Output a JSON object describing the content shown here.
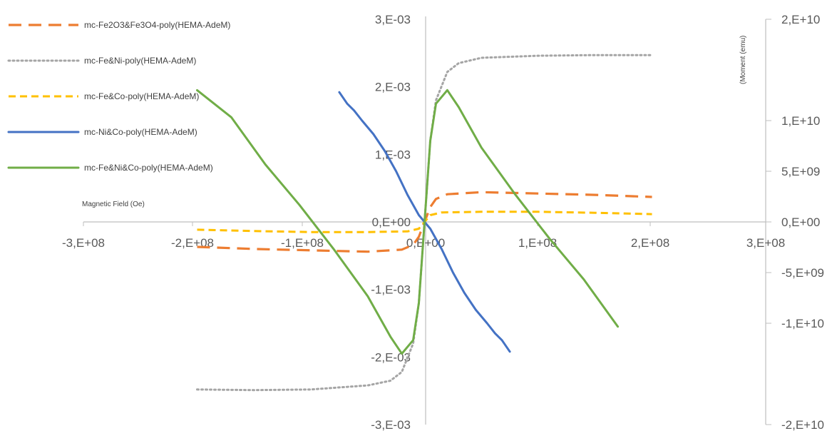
{
  "chart_data": {
    "type": "line",
    "xlabel": "Magnetic Field (Oe)",
    "ylabel_secondary": "(Moment (emu)",
    "xlim": [
      -300000000,
      300000000
    ],
    "ylim": [
      -0.003,
      0.003
    ],
    "ylim_secondary": [
      -20000000000,
      20000000000
    ],
    "x_ticks": [
      "-3,E+08",
      "-2,E+08",
      "-1,E+08",
      "0,E+00",
      "1,E+08",
      "2,E+08",
      "3,E+08"
    ],
    "y_ticks": [
      "-3,E-03",
      "-2,E-03",
      "-1,E-03",
      "0,E+00",
      "1,E-03",
      "2,E-03",
      "3,E-03"
    ],
    "y2_ticks": [
      "-2,E+10",
      "-1,E+10",
      "-5,E+09",
      "0,E+00",
      "5,E+09",
      "1,E+10",
      "2,E+10"
    ],
    "legend_position": "left",
    "series": [
      {
        "name": "mc-Fe2O3&Fe3O4-poly(HEMA-AdeM)",
        "color": "#ED7D31",
        "style": "longdash",
        "x": [
          -200000000,
          -150000000,
          -100000000,
          -50000000,
          -20000000,
          -10000000,
          -5000000,
          0,
          5000000,
          10000000,
          20000000,
          50000000,
          100000000,
          150000000,
          200000000
        ],
        "y": [
          -0.00037,
          -0.0004,
          -0.00042,
          -0.00044,
          -0.00041,
          -0.00034,
          -0.00022,
          0.0,
          0.00022,
          0.00034,
          0.00041,
          0.00044,
          0.00042,
          0.0004,
          0.00037
        ]
      },
      {
        "name": "mc-Fe&Ni-poly(HEMA-AdeM)",
        "color": "#A5A5A5",
        "style": "dotted",
        "x": [
          -200000000,
          -150000000,
          -100000000,
          -50000000,
          -30000000,
          -20000000,
          -10000000,
          -5000000,
          0,
          5000000,
          10000000,
          20000000,
          30000000,
          50000000,
          100000000,
          150000000,
          200000000
        ],
        "y": [
          -0.00248,
          -0.00249,
          -0.00248,
          -0.00242,
          -0.00235,
          -0.00222,
          -0.0018,
          -0.0012,
          0.0,
          0.0012,
          0.0018,
          0.00222,
          0.00235,
          0.00243,
          0.00246,
          0.00247,
          0.00247
        ]
      },
      {
        "name": "mc-Fe&Co-poly(HEMA-AdeM)",
        "color": "#FFC000",
        "style": "dashed",
        "x": [
          -200000000,
          -150000000,
          -100000000,
          -50000000,
          -15000000,
          -5000000,
          0,
          5000000,
          15000000,
          50000000,
          100000000,
          150000000,
          200000000
        ],
        "y": [
          -0.000115,
          -0.000135,
          -0.00015,
          -0.00015,
          -0.00014,
          -0.0001,
          0.0,
          0.0001,
          0.00014,
          0.00015,
          0.00015,
          0.000135,
          0.000115
        ],
        "axis": "secondary"
      },
      {
        "name": "mc-Ni&Co-poly(HEMA-AdeM)",
        "color": "#4472C4",
        "style": "solid",
        "x": [
          -75000000,
          -68000000,
          -62000000,
          -55000000,
          -45000000,
          -35000000,
          -25000000,
          -15000000,
          -5000000,
          0,
          5000000,
          15000000,
          25000000,
          35000000,
          45000000,
          55000000,
          62000000,
          68000000,
          75000000
        ],
        "y": [
          0.00192,
          0.00175,
          0.00165,
          0.0015,
          0.0013,
          0.00105,
          0.00075,
          0.0004,
          0.0001,
          0.0,
          -0.0001,
          -0.0004,
          -0.00075,
          -0.00105,
          -0.0013,
          -0.0015,
          -0.00165,
          -0.00175,
          -0.00192
        ],
        "axis": "secondary"
      },
      {
        "name": "mc-Fe&Ni&Co-poly(HEMA-AdeM)",
        "color": "#70AD47",
        "style": "solid",
        "x": [
          -200000000,
          -170000000,
          -140000000,
          -110000000,
          -80000000,
          -50000000,
          -30000000,
          -20000000,
          -10000000,
          -5000000,
          0,
          5000000,
          10000000,
          20000000,
          30000000,
          50000000,
          80000000,
          110000000,
          140000000,
          170000000
        ],
        "y": [
          0.00195,
          0.00155,
          0.00085,
          0.00025,
          -0.0004,
          -0.0011,
          -0.0017,
          -0.00195,
          -0.00175,
          -0.0012,
          0.0,
          0.0012,
          0.00175,
          0.00195,
          0.0017,
          0.0011,
          0.0004,
          -0.00025,
          -0.00085,
          -0.00155
        ],
        "axis": "secondary"
      }
    ]
  }
}
